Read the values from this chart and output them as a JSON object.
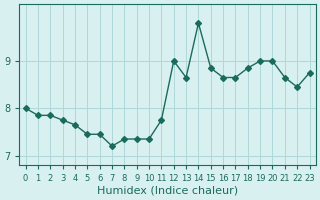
{
  "x": [
    0,
    1,
    2,
    3,
    4,
    5,
    6,
    7,
    8,
    9,
    10,
    11,
    12,
    13,
    14,
    15,
    16,
    17,
    18,
    19,
    20,
    21,
    22,
    23
  ],
  "y": [
    8.0,
    7.85,
    7.85,
    7.75,
    7.65,
    7.45,
    7.45,
    7.2,
    7.35,
    7.35,
    7.35,
    7.75,
    9.0,
    8.65,
    9.8,
    8.85,
    8.65,
    8.65,
    8.85,
    9.0,
    9.0,
    8.65,
    8.45,
    8.75
  ],
  "line_color": "#1a6b5a",
  "marker": "D",
  "marker_size": 3,
  "bg_color": "#d9f0f0",
  "grid_color": "#b0d8d8",
  "xlabel": "Humidex (Indice chaleur)",
  "yticks": [
    7,
    8,
    9
  ],
  "xtick_labels": [
    "0",
    "1",
    "2",
    "3",
    "4",
    "5",
    "6",
    "7",
    "8",
    "9",
    "10",
    "11",
    "12",
    "13",
    "14",
    "15",
    "16",
    "17",
    "18",
    "19",
    "20",
    "21",
    "22",
    "23"
  ],
  "xlim": [
    -0.5,
    23.5
  ],
  "ylim": [
    6.8,
    10.2
  ],
  "xlabel_fontsize": 8,
  "tick_fontsize": 7
}
